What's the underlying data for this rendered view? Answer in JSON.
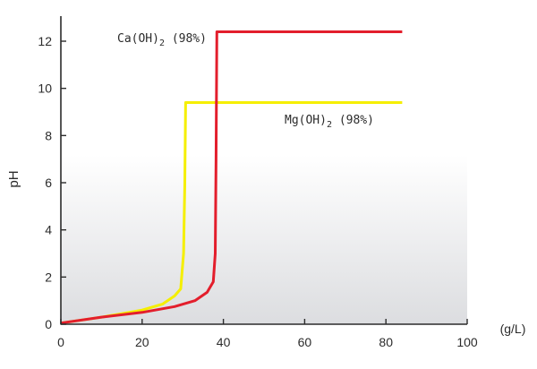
{
  "chart_data": {
    "type": "line",
    "xlabel": "",
    "xunit": "(g/L)",
    "ylabel": "pH",
    "xlim": [
      0,
      100
    ],
    "ylim": [
      0,
      13
    ],
    "xticks": [
      0,
      20,
      40,
      60,
      80,
      100
    ],
    "yticks": [
      0,
      2,
      4,
      6,
      8,
      10,
      12
    ],
    "grid": false,
    "series": [
      {
        "name": "Mg(OH)2 (98%)",
        "label_main": "Mg(OH)",
        "label_sub": "2",
        "label_tail": " (98%)",
        "color": "#f5ef00",
        "points": [
          [
            0,
            0.05
          ],
          [
            10,
            0.3
          ],
          [
            20,
            0.6
          ],
          [
            25,
            0.85
          ],
          [
            28,
            1.2
          ],
          [
            29.5,
            1.5
          ],
          [
            30.2,
            3
          ],
          [
            30.5,
            6
          ],
          [
            30.7,
            9.4
          ],
          [
            40,
            9.4
          ],
          [
            60,
            9.4
          ],
          [
            84,
            9.4
          ]
        ]
      },
      {
        "name": "Ca(OH)2 (98%)",
        "label_main": "Ca(OH)",
        "label_sub": "2",
        "label_tail": " (98%)",
        "color": "#e31e2c",
        "points": [
          [
            0,
            0.05
          ],
          [
            10,
            0.3
          ],
          [
            20,
            0.5
          ],
          [
            28,
            0.75
          ],
          [
            33,
            1.0
          ],
          [
            36,
            1.35
          ],
          [
            37.5,
            1.8
          ],
          [
            38,
            3
          ],
          [
            38.2,
            7
          ],
          [
            38.4,
            12.4
          ],
          [
            50,
            12.4
          ],
          [
            70,
            12.4
          ],
          [
            84,
            12.4
          ]
        ]
      }
    ]
  },
  "colors": {
    "axis": "#2b2b2b",
    "background_top": "#ffffff",
    "background_bottom": "#dcdde0"
  }
}
